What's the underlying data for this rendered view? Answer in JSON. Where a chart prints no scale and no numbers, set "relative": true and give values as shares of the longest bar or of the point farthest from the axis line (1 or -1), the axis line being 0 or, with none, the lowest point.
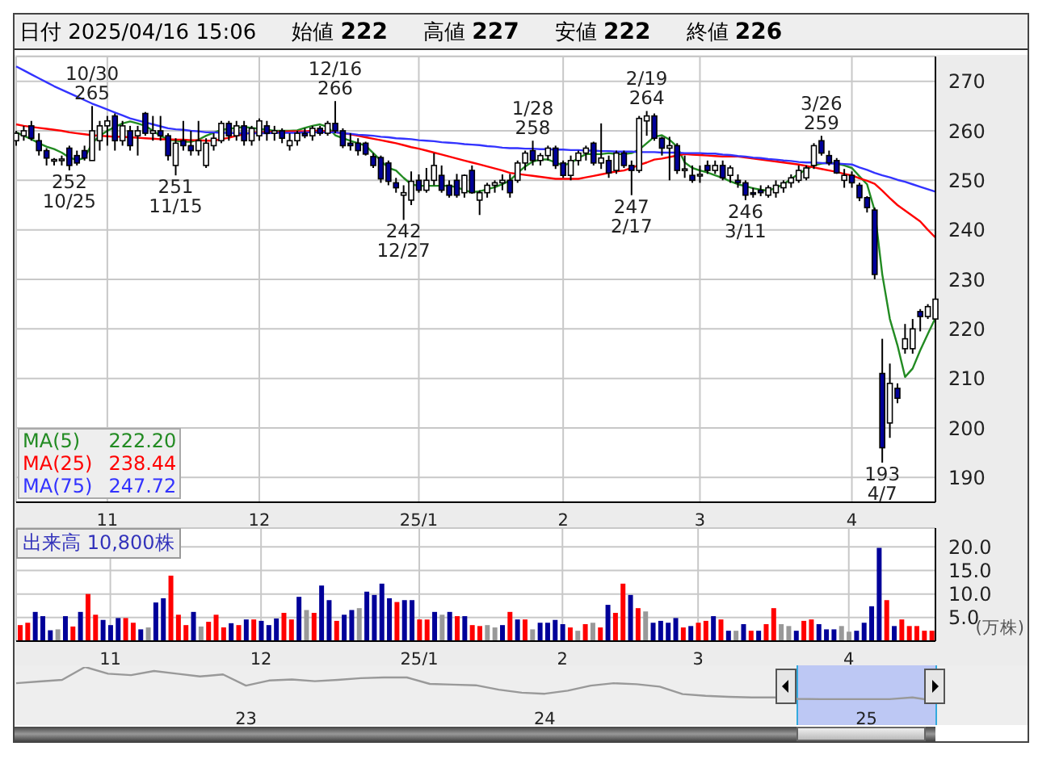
{
  "chart_data": [
    {
      "type": "candlestick",
      "title": "日付 2025/04/16 15:06",
      "annotations": [
        "始値 222",
        "高値 227",
        "安値 222",
        "終値 226",
        {
          "text": "10/30\n265",
          "y": 265
        },
        {
          "text": "252\n10/25",
          "y": 252
        },
        {
          "text": "251\n11/15",
          "y": 251
        },
        {
          "text": "12/16\n266",
          "y": 266
        },
        {
          "text": "242\n12/27",
          "y": 242
        },
        {
          "text": "1/28\n258",
          "y": 258
        },
        {
          "text": "247\n2/17",
          "y": 247
        },
        {
          "text": "2/19\n264",
          "y": 264
        },
        {
          "text": "246\n3/11",
          "y": 246
        },
        {
          "text": "3/26\n259",
          "y": 259
        },
        {
          "text": "193\n4/7",
          "y": 193
        }
      ],
      "categories": [
        null,
        null,
        null,
        null,
        null,
        null,
        null,
        null,
        null,
        null,
        null,
        null,
        "11",
        null,
        null,
        null,
        null,
        null,
        null,
        null,
        null,
        null,
        null,
        null,
        null,
        null,
        null,
        null,
        null,
        null,
        null,
        null,
        "12",
        null,
        null,
        null,
        null,
        null,
        null,
        null,
        null,
        null,
        null,
        null,
        null,
        null,
        null,
        null,
        null,
        null,
        null,
        null,
        null,
        "25/1",
        null,
        null,
        null,
        null,
        null,
        null,
        null,
        null,
        null,
        null,
        null,
        null,
        null,
        null,
        null,
        null,
        null,
        null,
        "2",
        null,
        null,
        null,
        null,
        null,
        null,
        null,
        null,
        null,
        null,
        null,
        null,
        null,
        null,
        null,
        null,
        null,
        "3",
        null,
        null,
        null,
        null,
        null,
        null,
        null,
        null,
        null,
        null,
        null,
        null,
        null,
        null,
        null,
        null,
        null,
        null,
        null,
        "4",
        null,
        null,
        null,
        null,
        null,
        null,
        null,
        null,
        null,
        null,
        null
      ],
      "ohlc": [
        [
          258,
          260,
          257,
          259.5
        ],
        [
          259,
          261,
          258,
          260
        ],
        [
          261,
          262,
          258,
          258.5
        ],
        [
          258,
          259.5,
          255,
          256
        ],
        [
          256,
          256.5,
          253,
          254.5
        ],
        [
          254,
          254.5,
          253,
          254.2
        ],
        [
          254,
          255,
          253,
          254.3
        ],
        [
          256.5,
          257,
          252,
          253
        ],
        [
          255,
          256,
          253,
          253.5
        ],
        [
          256,
          257,
          254,
          254.5
        ],
        [
          254,
          265,
          254,
          260
        ],
        [
          258,
          262,
          256,
          261
        ],
        [
          261,
          263,
          257,
          262
        ],
        [
          263,
          263.5,
          256,
          258
        ],
        [
          258,
          262,
          257,
          261
        ],
        [
          260,
          261,
          256,
          257
        ],
        [
          259,
          261,
          255,
          260
        ],
        [
          263.5,
          263.8,
          259,
          259.5
        ],
        [
          259.5,
          263,
          258,
          260
        ],
        [
          260,
          263,
          258,
          259
        ],
        [
          259,
          259.5,
          254,
          255
        ],
        [
          253,
          258.5,
          251,
          257.5
        ],
        [
          258,
          262,
          256,
          257
        ],
        [
          257,
          260,
          255,
          256
        ],
        [
          256,
          262,
          255,
          258
        ],
        [
          253,
          258.5,
          252.5,
          257.5
        ],
        [
          257,
          259.5,
          256,
          258.5
        ],
        [
          258,
          262,
          257.5,
          261.5
        ],
        [
          261.5,
          262,
          258,
          259
        ],
        [
          259,
          262,
          258,
          261
        ],
        [
          261,
          262,
          257,
          258
        ],
        [
          258,
          261,
          257,
          260.5
        ],
        [
          259,
          262.5,
          258,
          262
        ],
        [
          261,
          262,
          258,
          259.5
        ],
        [
          259.5,
          261,
          258,
          260
        ],
        [
          260,
          260.5,
          257.5,
          258.5
        ],
        [
          257,
          259.5,
          256,
          258
        ],
        [
          258,
          260,
          257,
          259.5
        ],
        [
          259.5,
          260.5,
          258.5,
          259
        ],
        [
          259,
          261,
          258,
          260.5
        ],
        [
          260.5,
          261,
          259,
          259.5
        ],
        [
          259.5,
          262,
          259,
          261.5
        ],
        [
          261.5,
          266,
          259.5,
          260
        ],
        [
          260,
          260.5,
          256.5,
          257
        ],
        [
          257.5,
          259.5,
          256,
          257
        ],
        [
          257.5,
          258.5,
          255,
          256
        ],
        [
          257.5,
          257.8,
          255,
          255.3
        ],
        [
          254.8,
          255.5,
          252.5,
          253
        ],
        [
          254.6,
          255,
          249.5,
          250.3
        ],
        [
          253.5,
          254,
          249,
          249.8
        ],
        [
          249.5,
          250.5,
          247.5,
          248.5
        ],
        [
          247,
          249,
          242,
          247.5
        ],
        [
          246,
          251.8,
          245,
          249.8
        ],
        [
          250,
          251.2,
          247.5,
          248
        ],
        [
          248,
          252.5,
          247.5,
          250
        ],
        [
          250,
          255.5,
          249,
          253
        ],
        [
          251,
          253,
          247.5,
          248
        ],
        [
          249,
          250,
          246.5,
          247
        ],
        [
          250,
          251.3,
          246.5,
          247
        ],
        [
          247.5,
          251.2,
          246.5,
          251
        ],
        [
          252,
          253,
          247.3,
          247.5
        ],
        [
          246,
          248,
          243,
          247.5
        ],
        [
          247.5,
          249.5,
          246.5,
          249
        ],
        [
          249,
          250,
          247.5,
          249.5
        ],
        [
          249.5,
          251.2,
          248,
          250
        ],
        [
          250,
          251.3,
          246.5,
          247.5
        ],
        [
          250,
          254,
          249.5,
          253.5
        ],
        [
          253.5,
          256,
          252,
          255.5
        ],
        [
          256,
          258,
          253,
          254
        ],
        [
          254,
          255.5,
          253,
          255
        ],
        [
          255,
          257,
          254,
          256.5
        ],
        [
          256.5,
          257,
          252.3,
          253
        ],
        [
          253.5,
          254,
          250.5,
          251
        ],
        [
          251,
          255,
          250,
          254
        ],
        [
          254,
          256,
          253,
          255.5
        ],
        [
          255.5,
          257,
          254,
          256.5
        ],
        [
          257.5,
          257.8,
          253,
          253.5
        ],
        [
          253.5,
          261.5,
          252.3,
          254.5
        ],
        [
          254,
          255,
          250.5,
          251.5
        ],
        [
          252,
          256,
          251.3,
          255.5
        ],
        [
          255.5,
          256,
          252.5,
          253
        ],
        [
          253,
          254,
          247,
          252
        ],
        [
          252,
          263,
          251.5,
          262.5
        ],
        [
          262,
          264,
          259,
          263
        ],
        [
          263,
          263.5,
          258,
          258.5
        ],
        [
          258.5,
          258.8,
          255,
          256.5
        ],
        [
          256.5,
          258.8,
          250,
          257
        ],
        [
          257,
          257.5,
          251.3,
          252
        ],
        [
          252,
          255,
          250.5,
          252.3
        ],
        [
          251,
          253,
          249.5,
          250
        ],
        [
          251,
          253,
          249.5,
          251.2
        ],
        [
          253,
          254,
          251.3,
          252
        ],
        [
          252,
          254,
          251.3,
          253
        ],
        [
          253,
          254,
          250,
          250.5
        ],
        [
          251,
          253,
          249.5,
          252.5
        ],
        [
          250,
          251.2,
          248.5,
          249.5
        ],
        [
          249.5,
          250,
          246,
          247
        ],
        [
          247.5,
          248.5,
          246.5,
          247.2
        ],
        [
          248,
          249,
          246.8,
          247.5
        ],
        [
          247,
          249,
          246.5,
          248.5
        ],
        [
          247.5,
          250,
          246.5,
          249
        ],
        [
          248.5,
          250,
          247.5,
          249.5
        ],
        [
          249.5,
          251.2,
          248.5,
          250.5
        ],
        [
          250,
          253,
          249.5,
          252
        ],
        [
          250.5,
          253,
          250,
          252.5
        ],
        [
          253,
          257.5,
          252.3,
          257
        ],
        [
          258,
          259,
          255,
          255.5
        ],
        [
          255,
          256,
          253,
          253.5
        ],
        [
          254,
          254.5,
          251.3,
          251.5
        ],
        [
          250,
          252.3,
          248.5,
          251
        ],
        [
          251,
          251.8,
          248.5,
          249.5
        ],
        [
          249,
          249.5,
          245.8,
          246.5
        ],
        [
          246.5,
          246.8,
          243.5,
          244.5
        ],
        [
          244,
          244.5,
          230,
          231
        ],
        [
          211,
          218,
          193,
          196
        ],
        [
          201,
          213,
          198,
          209
        ],
        [
          208,
          209,
          205,
          206
        ],
        [
          216,
          221,
          215,
          218
        ],
        [
          216,
          222,
          215,
          220
        ],
        [
          223.5,
          224,
          219.5,
          222.5
        ],
        [
          222.5,
          225,
          222,
          224.5
        ],
        [
          222,
          227,
          222,
          226
        ]
      ],
      "colors": [
        "#ffffff",
        "#ffffff",
        "#000099",
        "#000099",
        "#000099",
        "#ffffff",
        "#ffffff",
        "#000099",
        "#000099",
        "#000099",
        "#ffffff",
        "#ffffff",
        "#ffffff",
        "#000099",
        "#ffffff",
        "#000099",
        "#ffffff",
        "#000099",
        "#ffffff",
        "#000099",
        "#000099",
        "#ffffff",
        "#000099",
        "#000099",
        "#ffffff",
        "#ffffff",
        "#ffffff",
        "#ffffff",
        "#000099",
        "#ffffff",
        "#000099",
        "#ffffff",
        "#ffffff",
        "#000099",
        "#ffffff",
        "#000099",
        "#ffffff",
        "#ffffff",
        "#000099",
        "#ffffff",
        "#000099",
        "#ffffff",
        "#000099",
        "#000099",
        "#000099",
        "#000099",
        "#000099",
        "#000099",
        "#000099",
        "#000099",
        "#000099",
        "#ffffff",
        "#ffffff",
        "#000099",
        "#ffffff",
        "#ffffff",
        "#000099",
        "#000099",
        "#000099",
        "#ffffff",
        "#000099",
        "#ffffff",
        "#ffffff",
        "#ffffff",
        "#ffffff",
        "#000099",
        "#ffffff",
        "#ffffff",
        "#000099",
        "#ffffff",
        "#ffffff",
        "#000099",
        "#000099",
        "#ffffff",
        "#ffffff",
        "#ffffff",
        "#000099",
        "#ffffff",
        "#000099",
        "#ffffff",
        "#000099",
        "#000099",
        "#ffffff",
        "#ffffff",
        "#000099",
        "#000099",
        "#ffffff",
        "#000099",
        "#ffffff",
        "#000099",
        "#ffffff",
        "#000099",
        "#ffffff",
        "#000099",
        "#ffffff",
        "#000099",
        "#000099",
        "#000099",
        "#000099",
        "#ffffff",
        "#ffffff",
        "#ffffff",
        "#ffffff",
        "#ffffff",
        "#ffffff",
        "#ffffff",
        "#000099",
        "#000099",
        "#000099",
        "#ffffff",
        "#000099",
        "#000099",
        "#000099",
        "#000099",
        "#000099",
        "#ffffff",
        "#000099",
        "#ffffff",
        "#ffffff",
        "#000099",
        "#ffffff",
        "#ffffff"
      ],
      "series": [
        {
          "name": "MA(5) 222.20",
          "type": "line",
          "color": "#228b22",
          "values": [
            259.7,
            259,
            258.3,
            257.5,
            256.8,
            256.3,
            255.6,
            254.6,
            254.1,
            254.5,
            257.5,
            259,
            260,
            260.8,
            261.5,
            261.9,
            261.5,
            261,
            260,
            259,
            258.2,
            258,
            257.8,
            257.8,
            258.2,
            259,
            259.6,
            260.2,
            260.4,
            260.6,
            260.8,
            260.6,
            260.4,
            260.2,
            260,
            260,
            260,
            260.1,
            260.6,
            261,
            261.3,
            260.8,
            259.1,
            258.5,
            258,
            257.5,
            257,
            255.5,
            254,
            252.5,
            252,
            250.5,
            249.2,
            248.9,
            248.9,
            248.9,
            248.9,
            248.9,
            248.6,
            248,
            247.6,
            247.8,
            248.2,
            248.6,
            249.2,
            250,
            251.5,
            252.8,
            253.8,
            254.2,
            254.2,
            253.6,
            253,
            253.5,
            254.5,
            255.3,
            255.3,
            255.3,
            255.5,
            255.3,
            255.3,
            255.5,
            256.2,
            257.5,
            258.8,
            259.1,
            258.2,
            256.8,
            253.6,
            252.5,
            252,
            251.6,
            251,
            250.5,
            249.8,
            249.2,
            248.8,
            248.4,
            248.1,
            247.9,
            248.5,
            249.2,
            250.3,
            251.3,
            252.2,
            253,
            253.4,
            253.6,
            253.4,
            253,
            252.5,
            250.8,
            249.2,
            243.9,
            231,
            222,
            216.7,
            210.3,
            212,
            215.7,
            219,
            222.2
          ]
        },
        {
          "name": "MA(25) 238.44",
          "type": "line",
          "color": "#ff0000",
          "values": [
            261.3,
            261,
            260.8,
            260.6,
            260.4,
            260.2,
            260,
            259.7,
            259.5,
            259.3,
            259.1,
            259,
            258.9,
            258.8,
            258.8,
            258.7,
            258.6,
            258.5,
            258.4,
            258.3,
            258.3,
            258.2,
            258.2,
            258.1,
            258.1,
            258,
            258,
            258.3,
            258.6,
            259,
            259.3,
            259.7,
            259.7,
            259.8,
            259.8,
            259.8,
            259.9,
            259.9,
            259.9,
            260,
            260,
            259.9,
            259.7,
            259.5,
            259.3,
            259,
            258.7,
            258.4,
            258.1,
            257.8,
            257.5,
            257.1,
            256.7,
            256.4,
            256,
            255.6,
            255.2,
            254.8,
            254.4,
            254,
            253.6,
            253.2,
            252.8,
            252.4,
            252,
            251.5,
            251.3,
            251.1,
            250.9,
            250.7,
            250.5,
            250.3,
            250.3,
            250.3,
            250.3,
            250.6,
            250.9,
            251.2,
            251.5,
            251.8,
            252,
            252.5,
            253.1,
            253.6,
            254.2,
            254.4,
            254.7,
            255,
            255.3,
            255.2,
            255.1,
            255,
            254.9,
            254.8,
            254.8,
            254.8,
            254.6,
            254.4,
            254.2,
            254,
            253.8,
            253.6,
            253.4,
            253.2,
            252.9,
            252.6,
            252.3,
            252,
            251.7,
            251.3,
            251,
            250.4,
            249.9,
            249.3,
            247.9,
            246.4,
            245,
            243.9,
            242.8,
            241.7,
            240,
            238.44
          ]
        },
        {
          "name": "MA(75) 247.72",
          "type": "line",
          "color": "#3333ff",
          "values": [
            273,
            272.2,
            271.4,
            270.6,
            269.8,
            269,
            268.3,
            267.6,
            266.9,
            266.2,
            265.5,
            264.9,
            264.3,
            263.7,
            263.1,
            262.5,
            262.1,
            261.7,
            261.3,
            260.9,
            260.5,
            260.3,
            260.2,
            260,
            259.9,
            259.7,
            259.7,
            259.6,
            259.6,
            259.5,
            259.5,
            259.5,
            259.5,
            259.5,
            259.6,
            259.6,
            259.6,
            259.6,
            259.7,
            259.7,
            259.7,
            259.7,
            259.7,
            259.5,
            259.4,
            259.2,
            259.1,
            259,
            258.8,
            258.7,
            258.5,
            258.4,
            258.3,
            258.1,
            258,
            257.9,
            257.7,
            257.6,
            257.5,
            257.3,
            257.2,
            257.1,
            256.9,
            256.8,
            256.6,
            256.5,
            256.5,
            256.4,
            256.4,
            256.3,
            256.3,
            256.2,
            256.2,
            256.1,
            256.1,
            256,
            256,
            255.9,
            255.9,
            255.8,
            255.8,
            255.8,
            255.7,
            255.7,
            255.7,
            255.6,
            255.6,
            255.6,
            255.5,
            255.5,
            255.5,
            255.4,
            255.4,
            255.2,
            255.1,
            254.9,
            254.8,
            254.6,
            254.5,
            254.3,
            254.2,
            254,
            253.9,
            253.7,
            253.6,
            253.6,
            253.5,
            253.4,
            253.4,
            253.3,
            253.2,
            252.6,
            252.1,
            251.5,
            251,
            250.6,
            250.1,
            249.7,
            249.2,
            248.7,
            248.2,
            247.72
          ]
        }
      ],
      "ylim": [
        185,
        275
      ],
      "yticks": [
        190,
        200,
        210,
        220,
        230,
        240,
        250,
        260,
        270
      ],
      "grid": true,
      "legend": "bottom left"
    },
    {
      "type": "bar",
      "title": "出来高 10,800株",
      "ylabel": "(万株)",
      "categories": [
        null,
        null,
        null,
        null,
        null,
        null,
        null,
        null,
        null,
        null,
        null,
        null,
        "11",
        null,
        null,
        null,
        null,
        null,
        null,
        null,
        null,
        null,
        null,
        null,
        null,
        null,
        null,
        null,
        null,
        null,
        null,
        null,
        "12",
        null,
        null,
        null,
        null,
        null,
        null,
        null,
        null,
        null,
        null,
        null,
        null,
        null,
        null,
        null,
        null,
        null,
        null,
        null,
        null,
        "25/1",
        null,
        null,
        null,
        null,
        null,
        null,
        null,
        null,
        null,
        null,
        null,
        null,
        null,
        null,
        null,
        null,
        null,
        null,
        "2",
        null,
        null,
        null,
        null,
        null,
        null,
        null,
        null,
        null,
        null,
        null,
        null,
        null,
        null,
        null,
        null,
        null,
        "3",
        null,
        null,
        null,
        null,
        null,
        null,
        null,
        null,
        null,
        null,
        null,
        null,
        null,
        null,
        null,
        null,
        null,
        null,
        null,
        "4",
        null,
        null,
        null,
        null,
        null,
        null,
        null,
        null,
        null,
        null,
        null
      ],
      "values": [
        3.4,
        3.9,
        6.2,
        5.3,
        2.3,
        2.5,
        5.3,
        3.1,
        6.2,
        10,
        5.6,
        4.5,
        3.4,
        4.9,
        4.9,
        3.9,
        2.5,
        2.9,
        8.2,
        9.1,
        13.9,
        5.6,
        3.4,
        6.2,
        3.1,
        4.1,
        5.6,
        2.9,
        3.8,
        3.4,
        4.6,
        4.6,
        4.3,
        3.4,
        4.8,
        6,
        4.6,
        9.4,
        6.6,
        6,
        11.8,
        8.7,
        4.3,
        5.6,
        6.6,
        7,
        10.5,
        9.8,
        12.2,
        9.1,
        8.3,
        8.7,
        8.7,
        4.6,
        4.6,
        6.2,
        5.6,
        6.2,
        5.3,
        5.3,
        3.4,
        3.2,
        3.4,
        2.9,
        3.4,
        6.2,
        4.6,
        4.6,
        2.5,
        3.9,
        3.9,
        4.5,
        3.6,
        2.9,
        2.2,
        3.6,
        3.9,
        2.9,
        7.7,
        6,
        12.2,
        9.8,
        7,
        6.3,
        3.9,
        4.3,
        3.9,
        4.9,
        2.9,
        3.2,
        3.9,
        4.3,
        5.3,
        4.6,
        2.2,
        2.2,
        3.6,
        2.2,
        2.2,
        3.6,
        7,
        3.6,
        3.2,
        2.2,
        4.3,
        4.6,
        3.6,
        2.5,
        2.5,
        3.2,
        2,
        2.2,
        3.9,
        7.4,
        19.8,
        8.7,
        3.2,
        4.6,
        3.2,
        3.2,
        2.2,
        2.2
      ],
      "colors": [
        "#ff0000",
        "#ff0000",
        "#000099",
        "#000099",
        "#000099",
        "#999999",
        "#000099",
        "#ff0000",
        "#000099",
        "#ff0000",
        "#ff0000",
        "#000099",
        "#000099",
        "#000099",
        "#ff0000",
        "#ff0000",
        "#000099",
        "#999999",
        "#000099",
        "#000099",
        "#ff0000",
        "#ff0000",
        "#ff0000",
        "#000099",
        "#999999",
        "#ff0000",
        "#ff0000",
        "#ff0000",
        "#000099",
        "#ff0000",
        "#000099",
        "#ff0000",
        "#000099",
        "#000099",
        "#000099",
        "#ff0000",
        "#ff0000",
        "#000099",
        "#999999",
        "#ff0000",
        "#000099",
        "#000099",
        "#ff0000",
        "#000099",
        "#000099",
        "#999999",
        "#000099",
        "#000099",
        "#000099",
        "#000099",
        "#ff0000",
        "#000099",
        "#000099",
        "#ff0000",
        "#ff0000",
        "#000099",
        "#999999",
        "#000099",
        "#ff0000",
        "#000099",
        "#ff0000",
        "#ff0000",
        "#999999",
        "#999999",
        "#000099",
        "#ff0000",
        "#000099",
        "#ff0000",
        "#999999",
        "#000099",
        "#000099",
        "#000099",
        "#000099",
        "#ff0000",
        "#999999",
        "#ff0000",
        "#999999",
        "#ff0000",
        "#000099",
        "#ff0000",
        "#ff0000",
        "#000099",
        "#ff0000",
        "#999999",
        "#000099",
        "#000099",
        "#000099",
        "#000099",
        "#ff0000",
        "#000099",
        "#ff0000",
        "#ff0000",
        "#000099",
        "#ff0000",
        "#000099",
        "#999999",
        "#000099",
        "#ff0000",
        "#000099",
        "#ff0000",
        "#ff0000",
        "#999999",
        "#999999",
        "#000099",
        "#ff0000",
        "#ff0000",
        "#000099",
        "#000099",
        "#000099",
        "#999999",
        "#999999",
        "#000099",
        "#000099",
        "#000099",
        "#000099",
        "#ff0000",
        "#000099",
        "#ff0000",
        "#ff0000",
        "#ff0000",
        "#ff0000",
        "#ff0000"
      ],
      "ylim": [
        0,
        24
      ],
      "yticks": [
        {
          "value": 5,
          "label": "5.0"
        },
        {
          "value": 10,
          "label": "10.0"
        },
        {
          "value": 15,
          "label": "15.0"
        },
        {
          "value": 20,
          "label": "20.0"
        }
      ],
      "grid": true
    },
    {
      "type": "line",
      "relative": true,
      "color": "#999999",
      "tick_labels": "x",
      "categories": [
        null,
        null,
        null,
        null,
        null,
        null,
        null,
        null,
        null,
        null,
        "23",
        null,
        null,
        null,
        null,
        null,
        null,
        null,
        null,
        null,
        null,
        null,
        null,
        "24",
        null,
        null,
        null,
        null,
        null,
        null,
        null,
        null,
        null,
        null,
        null,
        null,
        null,
        "25",
        null,
        null,
        null
      ],
      "values": [
        0.52,
        0.57,
        0.62,
        1,
        0.8,
        0.76,
        0.88,
        0.8,
        0.72,
        0.78,
        0.45,
        0.6,
        0.63,
        0.58,
        0.62,
        0.67,
        0.69,
        0.69,
        0.5,
        0.48,
        0.46,
        0.33,
        0.24,
        0.21,
        0.3,
        0.45,
        0.52,
        0.49,
        0.42,
        0.2,
        0.15,
        0.12,
        0.1,
        0.1,
        0.06,
        0.05,
        0.05,
        0.05,
        0.05,
        0.1,
        0
      ]
    }
  ]
}
